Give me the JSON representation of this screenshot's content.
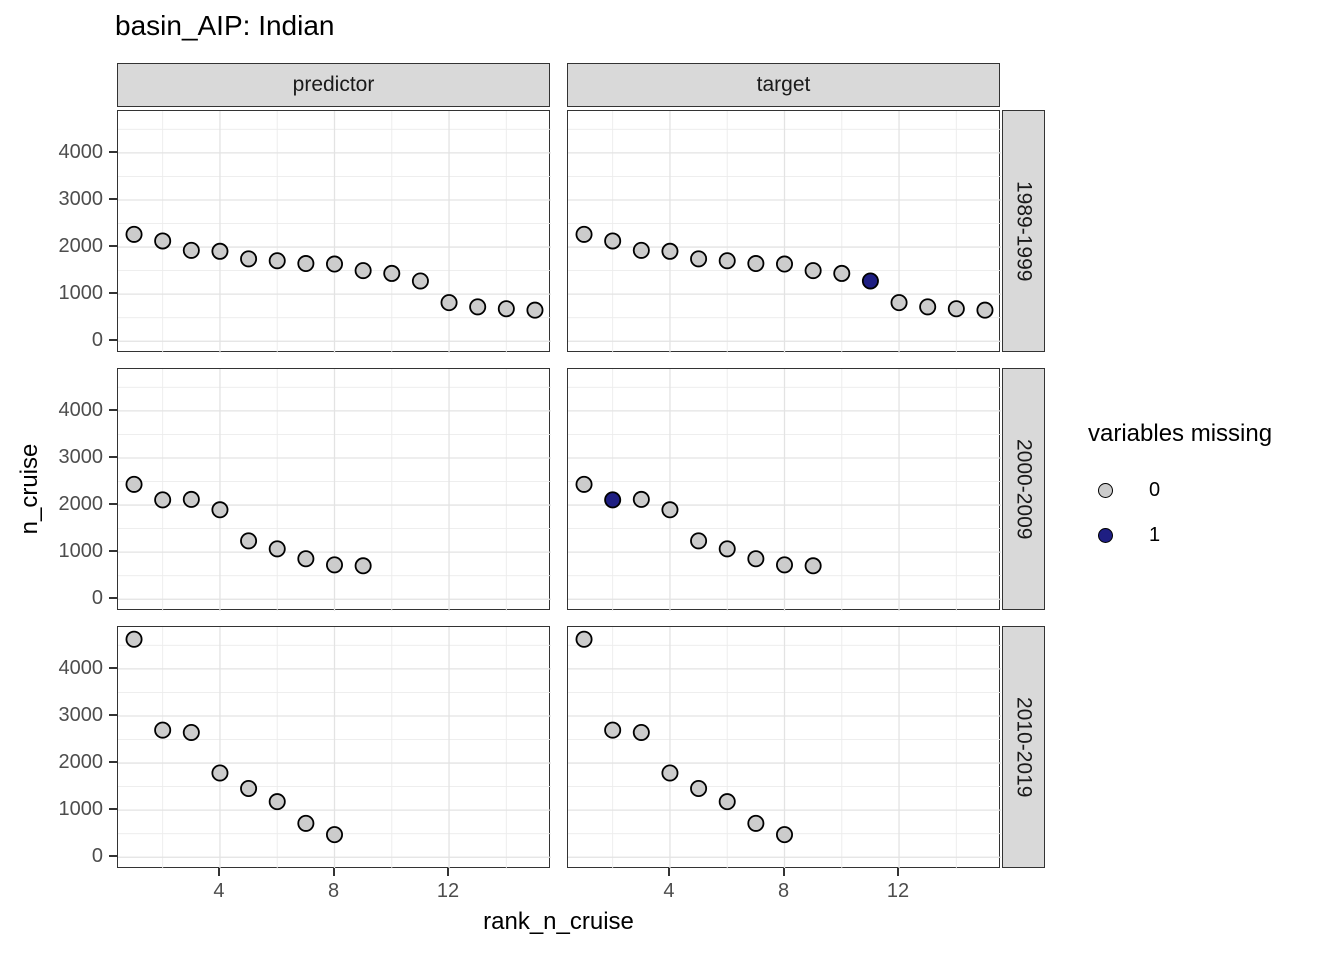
{
  "title": "basin_AIP: Indian",
  "legend": {
    "title": "variables missing",
    "items": [
      {
        "label": "0",
        "color": "#cccccc"
      },
      {
        "label": "1",
        "color": "#1e1e82"
      }
    ]
  },
  "chart_data": {
    "type": "scatter",
    "title": "basin_AIP: Indian",
    "xlabel": "rank_n_cruise",
    "ylabel": "n_cruise",
    "facet_cols": [
      "predictor",
      "target"
    ],
    "facet_rows": [
      "1989-1999",
      "2000-2009",
      "2010-2019"
    ],
    "x_ticks": [
      4,
      8,
      12
    ],
    "y_ticks": [
      0,
      1000,
      2000,
      3000,
      4000
    ],
    "x_minor": [
      2,
      6,
      10,
      14
    ],
    "y_minor": [
      500,
      1500,
      2500,
      3500,
      4500
    ],
    "xlim": [
      0.44,
      15.56
    ],
    "ylim": [
      -250,
      4890
    ],
    "grid": "on",
    "legend_position": "right",
    "point_colors": {
      "missing0": "#cccccc",
      "missing1": "#1e1e82",
      "stroke": "#000000"
    },
    "rows": [
      {
        "label": "1989-1999",
        "ranks": [
          1,
          2,
          3,
          4,
          5,
          6,
          7,
          8,
          9,
          10,
          11,
          12,
          13,
          14,
          15
        ],
        "n_cruise": [
          2270,
          2130,
          1930,
          1910,
          1750,
          1710,
          1650,
          1640,
          1500,
          1440,
          1280,
          820,
          730,
          690,
          660
        ],
        "target_missing_ranks": [
          11
        ]
      },
      {
        "label": "2000-2009",
        "ranks": [
          1,
          2,
          3,
          4,
          5,
          6,
          7,
          8,
          9
        ],
        "n_cruise": [
          2440,
          2110,
          2120,
          1900,
          1240,
          1070,
          860,
          730,
          710
        ],
        "target_missing_ranks": [
          2
        ]
      },
      {
        "label": "2010-2019",
        "ranks": [
          1,
          2,
          3,
          4,
          5,
          6,
          7,
          8
        ],
        "n_cruise": [
          4630,
          2700,
          2650,
          1790,
          1460,
          1180,
          720,
          480
        ],
        "target_missing_ranks": []
      }
    ]
  }
}
